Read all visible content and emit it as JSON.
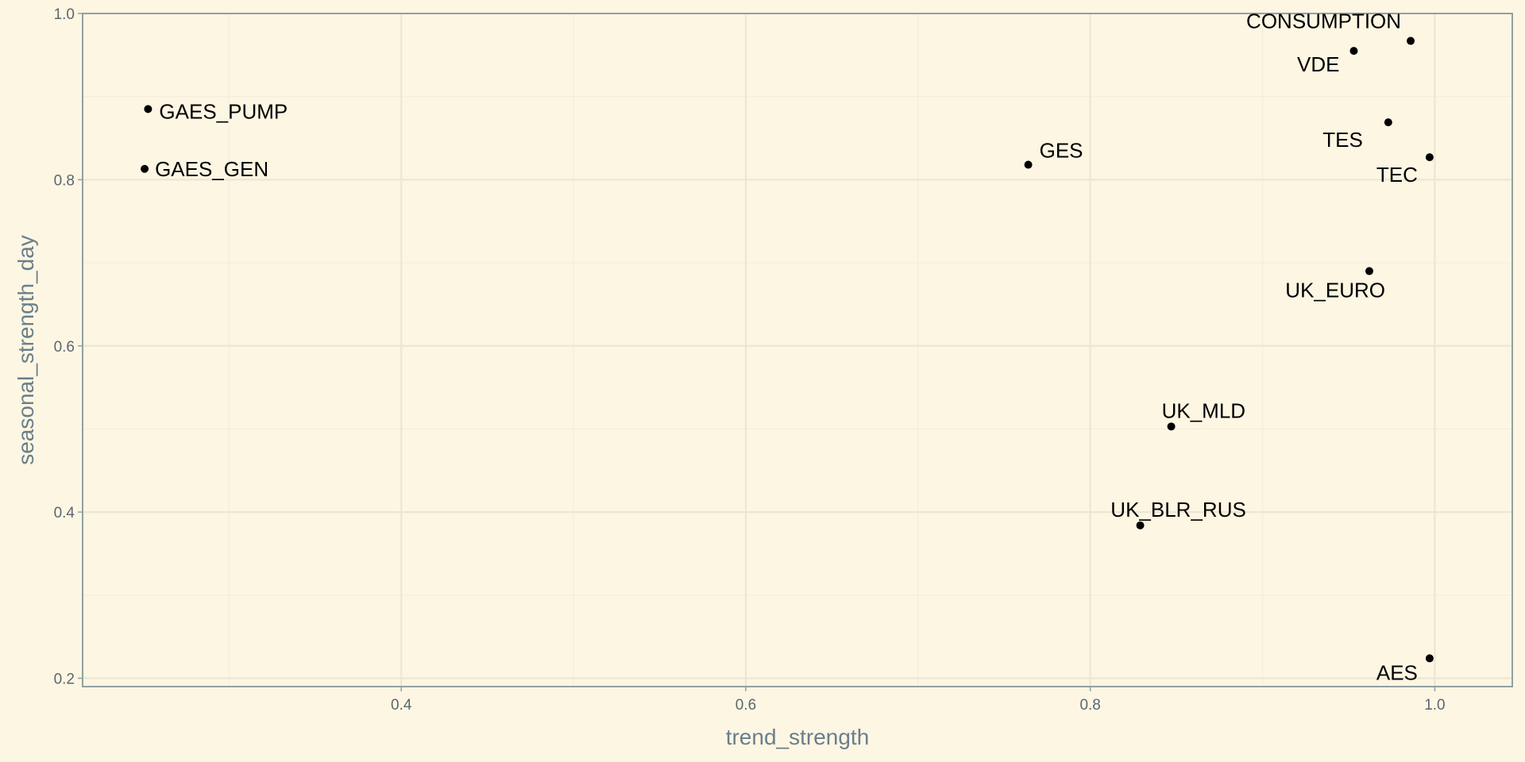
{
  "chart_data": {
    "type": "scatter",
    "xlabel": "trend_strength",
    "ylabel": "seasonal_strength_day",
    "xlim": [
      0.215,
      1.045
    ],
    "ylim": [
      0.19,
      1.0
    ],
    "x_ticks": [
      0.4,
      0.6,
      0.8,
      1.0
    ],
    "x_tick_labels": [
      "0.4",
      "0.6",
      "0.8",
      "1.0"
    ],
    "y_ticks": [
      0.2,
      0.4,
      0.6,
      0.8,
      1.0
    ],
    "y_tick_labels": [
      "0.2",
      "0.4",
      "0.6",
      "0.8",
      "1.0"
    ],
    "x_minor": [
      0.3,
      0.5,
      0.7,
      0.9
    ],
    "y_minor": [
      0.3,
      0.5,
      0.7,
      0.9
    ],
    "grid": true,
    "legend": "none",
    "points": [
      {
        "label": "CONSUMPTION",
        "x": 0.986,
        "y": 0.967
      },
      {
        "label": "VDE",
        "x": 0.953,
        "y": 0.955
      },
      {
        "label": "GAES_PUMP",
        "x": 0.253,
        "y": 0.885
      },
      {
        "label": "TES",
        "x": 0.973,
        "y": 0.869
      },
      {
        "label": "TEC",
        "x": 0.997,
        "y": 0.827
      },
      {
        "label": "GES",
        "x": 0.764,
        "y": 0.818
      },
      {
        "label": "GAES_GEN",
        "x": 0.251,
        "y": 0.813
      },
      {
        "label": "UK_EURO",
        "x": 0.962,
        "y": 0.69
      },
      {
        "label": "UK_MLD",
        "x": 0.847,
        "y": 0.503
      },
      {
        "label": "UK_BLR_RUS",
        "x": 0.829,
        "y": 0.384
      },
      {
        "label": "AES",
        "x": 0.997,
        "y": 0.224
      }
    ]
  },
  "colors": {
    "background": "#fdf6e3",
    "grid_major": "#ece6d4",
    "grid_minor": "#f3eddc",
    "panel_border": "#93a1a1",
    "point": "#000000",
    "axis_title": "#6a7f8a",
    "tick_label": "#5b6770"
  }
}
